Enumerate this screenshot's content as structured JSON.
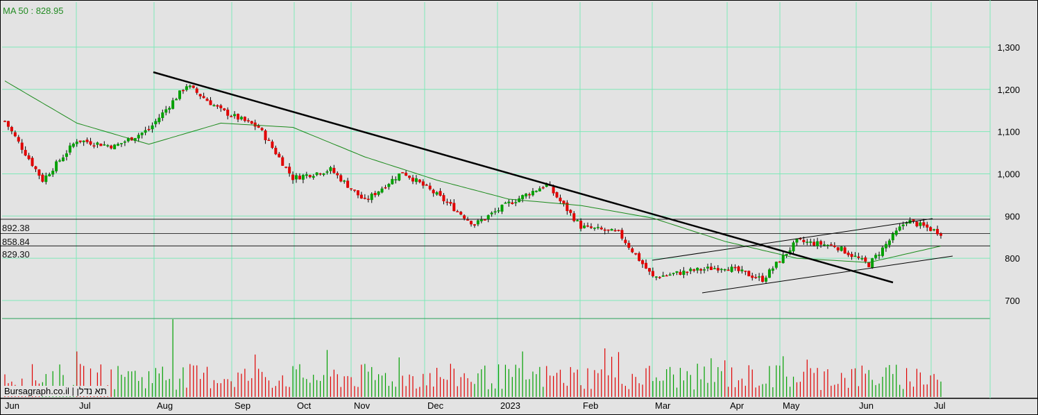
{
  "header": {
    "ma_label": "MA 50 : 828.95"
  },
  "footer": {
    "brand": "Bursagraph.co.il | תא נדלן"
  },
  "chart_data": {
    "type": "candlestick",
    "title": "",
    "moving_average": {
      "name": "MA 50",
      "last_value": 828.95,
      "color": "#1a8a1a"
    },
    "y_axis": {
      "ticks": [
        700,
        800,
        900,
        1000,
        1100,
        1200,
        1300
      ],
      "tick_labels": [
        "700",
        "800",
        "900",
        "1,000",
        "1,100",
        "1,200",
        "1,300"
      ],
      "range": [
        655,
        1380
      ],
      "position": "right"
    },
    "x_axis": {
      "labels": [
        "Jun",
        "Jul",
        "Aug",
        "Sep",
        "Oct",
        "Nov",
        "Dec",
        "2023",
        "Feb",
        "Mar",
        "Apr",
        "May",
        "Jun",
        "Jul"
      ]
    },
    "horizontal_levels": [
      {
        "label": "892.38",
        "value": 892.38
      },
      {
        "label": "858.84",
        "value": 858.84
      },
      {
        "label": "829.30",
        "value": 829.3
      }
    ],
    "trendlines": [
      {
        "name": "down-trend",
        "start": [
          "Aug",
          1240
        ],
        "end": [
          "Jun",
          745
        ]
      },
      {
        "name": "channel-upper",
        "start": [
          "Mar",
          800
        ],
        "end": [
          "Jul",
          898
        ]
      },
      {
        "name": "channel-lower",
        "start": [
          "Mar",
          725
        ],
        "end": [
          "Jul",
          808
        ]
      }
    ],
    "price_key_points": [
      {
        "x": "Jun",
        "y": 1125
      },
      {
        "x": "Jun",
        "y": 985
      },
      {
        "x": "Jul",
        "y": 1080
      },
      {
        "x": "Jul",
        "y": 1065
      },
      {
        "x": "Aug",
        "y": 1105
      },
      {
        "x": "Aug",
        "y": 1210
      },
      {
        "x": "Sep",
        "y": 1150
      },
      {
        "x": "Sep",
        "y": 1110
      },
      {
        "x": "Oct",
        "y": 990
      },
      {
        "x": "Oct",
        "y": 1010
      },
      {
        "x": "Nov",
        "y": 935
      },
      {
        "x": "Nov",
        "y": 1005
      },
      {
        "x": "Dec",
        "y": 950
      },
      {
        "x": "Dec",
        "y": 880
      },
      {
        "x": "2023",
        "y": 930
      },
      {
        "x": "2023",
        "y": 975
      },
      {
        "x": "Feb",
        "y": 875
      },
      {
        "x": "Feb",
        "y": 860
      },
      {
        "x": "Mar",
        "y": 755
      },
      {
        "x": "Mar",
        "y": 770
      },
      {
        "x": "Apr",
        "y": 780
      },
      {
        "x": "Apr",
        "y": 750
      },
      {
        "x": "May",
        "y": 840
      },
      {
        "x": "May",
        "y": 830
      },
      {
        "x": "Jun",
        "y": 785
      },
      {
        "x": "Jun",
        "y": 890
      },
      {
        "x": "Jul",
        "y": 860
      }
    ],
    "ma_key_points": [
      {
        "x": "Jun",
        "y": 1220
      },
      {
        "x": "Jul",
        "y": 1120
      },
      {
        "x": "Aug",
        "y": 1070
      },
      {
        "x": "Sep",
        "y": 1120
      },
      {
        "x": "Oct",
        "y": 1110
      },
      {
        "x": "Nov",
        "y": 1040
      },
      {
        "x": "Dec",
        "y": 985
      },
      {
        "x": "2023",
        "y": 940
      },
      {
        "x": "Feb",
        "y": 925
      },
      {
        "x": "Mar",
        "y": 895
      },
      {
        "x": "Apr",
        "y": 840
      },
      {
        "x": "May",
        "y": 800
      },
      {
        "x": "Jun",
        "y": 790
      },
      {
        "x": "Jul",
        "y": 829
      }
    ],
    "colors": {
      "up": "#00a000",
      "down": "#e00000",
      "grid": "#7fe8b8",
      "background": "#e3e3e3",
      "volume_up": "#00a000",
      "volume_down": "#e00000"
    },
    "grid": true
  }
}
